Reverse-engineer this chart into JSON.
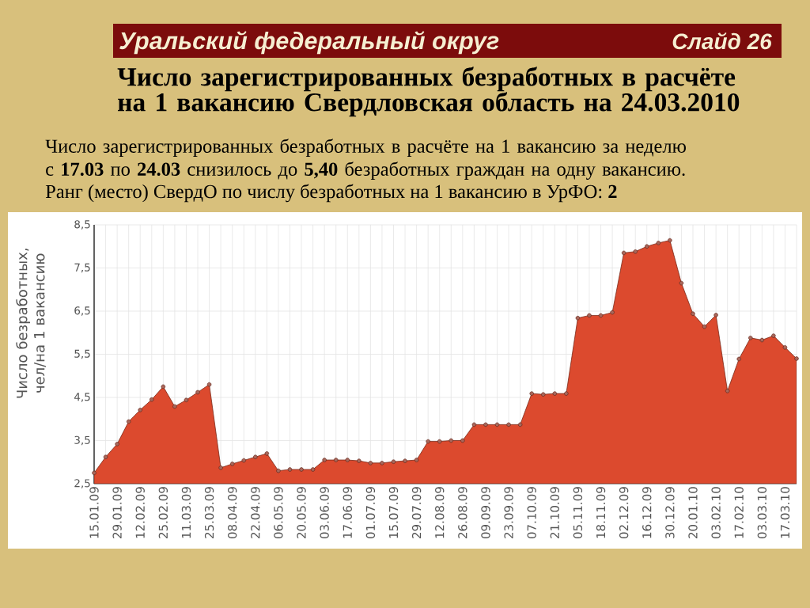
{
  "chart_data": {
    "type": "area",
    "title": "Число зарегистрированных безработных в расчёте на 1 вакансию Свердловская область на 24.03.2010",
    "ylabel": "Число безработных, чел/на 1 вакансию",
    "annotations": [
      "Уральский федеральный округ",
      "Слайд 26",
      "Число зарегистрированных безработных в расчёте на 1 вакансию за неделю с **17.03** по **24.03** снизилось до **5,40** безработных граждан на одну вакансию.",
      "Ранг (место) СвердО по числу безработных на 1 вакансию в УрФО: **2**"
    ],
    "categories": [
      "15.01.09",
      null,
      "29.01.09",
      null,
      "12.02.09",
      null,
      "25.02.09",
      null,
      "11.03.09",
      null,
      "25.03.09",
      null,
      "08.04.09",
      null,
      "22.04.09",
      null,
      "06.05.09",
      null,
      "20.05.09",
      null,
      "03.06.09",
      null,
      "17.06.09",
      null,
      "01.07.09",
      null,
      "15.07.09",
      null,
      "29.07.09",
      null,
      "12.08.09",
      null,
      "26.08.09",
      null,
      "09.09.09",
      null,
      "23.09.09",
      null,
      "07.10.09",
      null,
      "21.10.09",
      null,
      "05.11.09",
      null,
      "18.11.09",
      null,
      "02.12.09",
      null,
      "16.12.09",
      null,
      "30.12.09",
      null,
      "20.01.10",
      null,
      "03.02.10",
      null,
      "17.02.10",
      null,
      "03.03.10",
      null,
      "17.03.10",
      null
    ],
    "values": [
      2.75,
      3.12,
      3.42,
      3.94,
      4.21,
      4.45,
      4.75,
      4.29,
      4.44,
      4.62,
      4.8,
      2.87,
      2.96,
      3.04,
      3.12,
      3.2,
      2.8,
      2.83,
      2.83,
      2.83,
      3.05,
      3.05,
      3.05,
      3.03,
      2.98,
      2.98,
      3.01,
      3.03,
      3.05,
      3.48,
      3.48,
      3.5,
      3.5,
      3.87,
      3.87,
      3.87,
      3.87,
      3.87,
      4.59,
      4.57,
      4.59,
      4.59,
      6.34,
      6.4,
      6.4,
      6.47,
      7.85,
      7.88,
      8.0,
      8.08,
      8.14,
      7.15,
      6.44,
      6.14,
      6.41,
      4.65,
      5.39,
      5.88,
      5.83,
      5.93,
      5.66,
      5.4
    ],
    "color": "#dc4a2e",
    "ylim": [
      2.5,
      8.5
    ],
    "yticks": [
      {
        "value": 2.5,
        "label": "2,5"
      },
      {
        "value": 3.5,
        "label": "3,5"
      },
      {
        "value": 4.5,
        "label": "4,5"
      },
      {
        "value": 5.5,
        "label": "5,5"
      },
      {
        "value": 6.5,
        "label": "6,5"
      },
      {
        "value": 7.5,
        "label": "7,5"
      },
      {
        "value": 8.5,
        "label": "8,5"
      }
    ],
    "grid": true,
    "marker": "circle"
  }
}
